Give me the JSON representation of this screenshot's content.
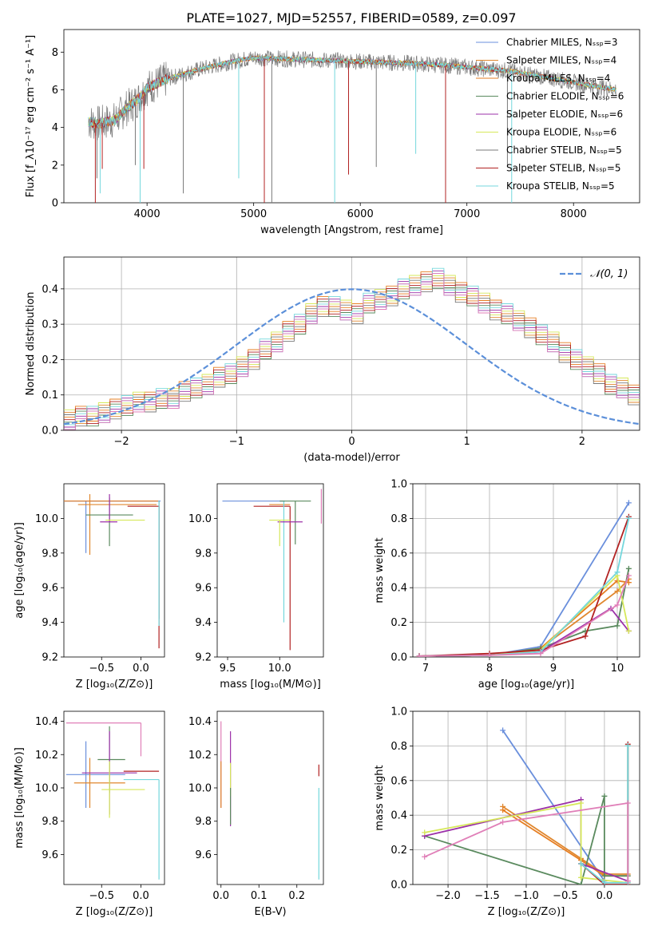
{
  "title": "PLATE=1027, MJD=52557, FIBERID=0589, z=0.097",
  "colors": {
    "Chabrier MILES": "#6a8fdc",
    "Salpeter MILES": "#e0872e",
    "Kroupa MILES": "#e67e22",
    "Chabrier ELODIE": "#5a8a5e",
    "Salpeter ELODIE": "#9b30a8",
    "Kroupa ELODIE": "#d6e85a",
    "Chabrier STELIB": "#7a7a7a",
    "Salpeter STELIB": "#b22222",
    "Kroupa STELIB": "#74d7dc",
    "extra": "#e07fb8"
  },
  "chart_data": [
    {
      "id": "spectrum",
      "type": "line",
      "xlabel": "wavelength [Angstrom, rest frame]",
      "ylabel": "Flux [f_λ10⁻¹⁷ erg cm⁻² s⁻¹ A⁻¹]",
      "xlim": [
        3220,
        8620
      ],
      "ylim": [
        0,
        9.2
      ],
      "xticks": [
        4000,
        5000,
        6000,
        7000,
        8000
      ],
      "yticks": [
        0,
        2,
        4,
        6,
        8
      ],
      "legend_position": "top-right",
      "legend": [
        "Chabrier MILES, N_SSP=3",
        "Salpeter MILES, N_SSP=4",
        "Kroupa MILES, N_SSP=4",
        "Chabrier ELODIE, N_SSP=6",
        "Salpeter ELODIE, N_SSP=6",
        "Kroupa ELODIE, N_SSP=6",
        "Chabrier STELIB, N_SSP=5",
        "Salpeter STELIB, N_SSP=5",
        "Kroupa STELIB, N_SSP=5"
      ],
      "continuum_x": [
        3450,
        3550,
        3700,
        3800,
        3900,
        4000,
        4200,
        4500,
        4800,
        5000,
        5500,
        6000,
        6500,
        6800,
        7000,
        7200,
        7400,
        7600,
        7800,
        8000,
        8200,
        8400
      ],
      "continuum_y": [
        4.3,
        4.2,
        4.4,
        5.0,
        5.4,
        6.1,
        6.6,
        7.1,
        7.5,
        7.7,
        7.6,
        7.5,
        7.4,
        7.3,
        7.2,
        7.1,
        7.0,
        6.8,
        6.6,
        6.4,
        6.2,
        6.0
      ],
      "absorption_lines_x": [
        3515,
        3530,
        3560,
        3580,
        3890,
        3935,
        3970,
        4340,
        4860,
        5100,
        5170,
        5760,
        5890,
        6150,
        6520,
        6800,
        7380,
        7420
      ],
      "absorption_lines_y": [
        0.0,
        1.3,
        0.5,
        1.8,
        2.0,
        0.0,
        1.8,
        0.5,
        1.3,
        0.0,
        0.0,
        0.0,
        1.5,
        1.9,
        2.6,
        0.0,
        2.0,
        0.0
      ]
    },
    {
      "id": "residuals",
      "type": "bar",
      "xlabel": "(data-model)/error",
      "ylabel": "Normed distribution",
      "xlim": [
        -2.5,
        2.5
      ],
      "ylim": [
        0,
        0.49
      ],
      "xticks": [
        -2,
        -1,
        0,
        1,
        2
      ],
      "yticks": [
        0.0,
        0.1,
        0.2,
        0.3,
        0.4
      ],
      "legend": [
        "𝒩(0, 1)"
      ],
      "bin_width": 0.1,
      "bins_start": -2.5,
      "histogram": [
        0.03,
        0.04,
        0.04,
        0.05,
        0.06,
        0.07,
        0.08,
        0.08,
        0.09,
        0.09,
        0.11,
        0.12,
        0.13,
        0.15,
        0.16,
        0.18,
        0.2,
        0.23,
        0.25,
        0.28,
        0.3,
        0.33,
        0.35,
        0.35,
        0.34,
        0.33,
        0.36,
        0.37,
        0.38,
        0.4,
        0.41,
        0.42,
        0.43,
        0.41,
        0.39,
        0.38,
        0.36,
        0.34,
        0.33,
        0.31,
        0.29,
        0.27,
        0.25,
        0.22,
        0.2,
        0.18,
        0.16,
        0.13,
        0.12,
        0.1
      ]
    },
    {
      "id": "Z-age",
      "type": "scatter",
      "xlabel": "Z [log₁₀(Z/Z⊙)]",
      "ylabel": "age  [log₁₀(age/yr)]",
      "xlim": [
        -0.98,
        0.3
      ],
      "ylim": [
        9.2,
        10.2
      ],
      "xticks": [
        -0.5,
        0.0
      ],
      "yticks": [
        9.2,
        9.4,
        9.6,
        9.8,
        10.0
      ],
      "points": [
        {
          "x": -0.7,
          "y": 10.1,
          "xerr": [
            0.28,
            0.95
          ],
          "yerr": [
            0.3,
            0.0
          ],
          "c": "Chabrier MILES"
        },
        {
          "x": -0.65,
          "y": 10.08,
          "xerr": [
            0.15,
            0.85
          ],
          "yerr": [
            0.29,
            0.06
          ],
          "c": "Salpeter MILES"
        },
        {
          "x": -0.4,
          "y": 10.1,
          "xerr": [
            0.65,
            0.62
          ],
          "yerr": [
            0.0,
            0.0
          ],
          "c": "Kroupa MILES"
        },
        {
          "x": -0.4,
          "y": 10.02,
          "xerr": [
            0.3,
            0.3
          ],
          "yerr": [
            0.18,
            0.1
          ],
          "c": "Chabrier ELODIE"
        },
        {
          "x": -0.4,
          "y": 9.98,
          "xerr": [
            0.12,
            0.1
          ],
          "yerr": [
            0.0,
            0.16
          ],
          "c": "Salpeter ELODIE"
        },
        {
          "x": -0.2,
          "y": 9.99,
          "xerr": [
            0.25,
            0.25
          ],
          "yerr": [
            0.0,
            0.0
          ],
          "c": "Kroupa ELODIE"
        },
        {
          "x": 0.23,
          "y": 10.1,
          "xerr": [
            0.0,
            0.0
          ],
          "yerr": [
            0.68,
            0.0
          ],
          "c": "Chabrier STELIB"
        },
        {
          "x": 0.23,
          "y": 10.07,
          "xerr": [
            0.4,
            0.0
          ],
          "yerr": [
            0.82,
            0.0
          ],
          "c": "Salpeter STELIB"
        },
        {
          "x": 0.23,
          "y": 10.1,
          "xerr": [
            0.0,
            0.0
          ],
          "yerr": [
            0.72,
            0.0
          ],
          "c": "Kroupa STELIB"
        }
      ]
    },
    {
      "id": "mass-age",
      "type": "scatter",
      "xlabel": "mass [log₁₀(M/M⊙)]",
      "ylabel": "",
      "xlim": [
        9.4,
        10.42
      ],
      "ylim": [
        9.2,
        10.2
      ],
      "xticks": [
        9.5,
        10.0
      ],
      "yticks": [
        9.2,
        9.4,
        9.6,
        9.8,
        10.0
      ],
      "points": [
        {
          "x": 10.05,
          "y": 10.1,
          "xerr": [
            0.6,
            0.0
          ],
          "yerr": [
            0.0,
            0.0
          ],
          "c": "Chabrier MILES"
        },
        {
          "x": 10.1,
          "y": 10.08,
          "xerr": [
            0.2,
            0.0
          ],
          "yerr": [
            0.0,
            0.0
          ],
          "c": "Salpeter MILES"
        },
        {
          "x": 10.1,
          "y": 10.07,
          "xerr": [
            0.35,
            0.0
          ],
          "yerr": [
            0.83,
            0.0
          ],
          "c": "Salpeter STELIB"
        },
        {
          "x": 10.04,
          "y": 10.1,
          "xerr": [
            0.0,
            0.0
          ],
          "yerr": [
            0.7,
            0.0
          ],
          "c": "Kroupa STELIB"
        },
        {
          "x": 10.15,
          "y": 10.1,
          "xerr": [
            0.15,
            0.15
          ],
          "yerr": [
            0.25,
            0.0
          ],
          "c": "Chabrier ELODIE"
        },
        {
          "x": 10.1,
          "y": 9.98,
          "xerr": [
            0.12,
            0.12
          ],
          "yerr": [
            0.0,
            0.0
          ],
          "c": "Salpeter ELODIE"
        },
        {
          "x": 10.0,
          "y": 9.99,
          "xerr": [
            0.1,
            0.1
          ],
          "yerr": [
            0.15,
            0.0
          ],
          "c": "Kroupa ELODIE"
        },
        {
          "x": 10.4,
          "y": 10.07,
          "xerr": [
            0.0,
            0.0
          ],
          "yerr": [
            0.1,
            0.1
          ],
          "c": "extra"
        }
      ]
    },
    {
      "id": "age-weight",
      "type": "line",
      "xlabel": "age  [log₁₀(age/yr)]",
      "ylabel": "mass weight",
      "xlim": [
        6.8,
        10.35
      ],
      "ylim": [
        0,
        1.0
      ],
      "xticks": [
        7,
        8,
        9,
        10
      ],
      "yticks": [
        0.0,
        0.2,
        0.4,
        0.6,
        0.8,
        1.0
      ],
      "series": [
        {
          "c": "Chabrier MILES",
          "x": [
            6.9,
            8.0,
            8.8,
            10.18
          ],
          "y": [
            0.005,
            0.01,
            0.06,
            0.89
          ]
        },
        {
          "c": "Salpeter MILES",
          "x": [
            6.9,
            8.0,
            8.8,
            10.0,
            10.18
          ],
          "y": [
            0.005,
            0.01,
            0.05,
            0.38,
            0.45
          ]
        },
        {
          "c": "Kroupa MILES",
          "x": [
            6.9,
            8.0,
            8.8,
            10.0,
            10.18
          ],
          "y": [
            0.005,
            0.01,
            0.05,
            0.44,
            0.43
          ]
        },
        {
          "c": "Chabrier ELODIE",
          "x": [
            6.9,
            8.0,
            8.8,
            9.5,
            10.0,
            10.18
          ],
          "y": [
            0.005,
            0.01,
            0.05,
            0.15,
            0.18,
            0.51
          ]
        },
        {
          "c": "Salpeter ELODIE",
          "x": [
            6.9,
            8.0,
            8.8,
            9.9,
            10.18
          ],
          "y": [
            0.005,
            0.01,
            0.03,
            0.28,
            0.15
          ]
        },
        {
          "c": "Kroupa ELODIE",
          "x": [
            6.9,
            8.0,
            8.8,
            10.0,
            10.18
          ],
          "y": [
            0.005,
            0.01,
            0.04,
            0.47,
            0.15
          ]
        },
        {
          "c": "Salpeter STELIB",
          "x": [
            6.9,
            8.0,
            8.8,
            9.5,
            10.18
          ],
          "y": [
            0.005,
            0.02,
            0.04,
            0.12,
            0.81
          ]
        },
        {
          "c": "Kroupa STELIB",
          "x": [
            6.9,
            8.0,
            8.8,
            10.0,
            10.18
          ],
          "y": [
            0.005,
            0.01,
            0.03,
            0.49,
            0.8
          ]
        },
        {
          "c": "extra",
          "x": [
            6.9,
            8.0,
            8.8,
            10.0,
            10.18
          ],
          "y": [
            0.005,
            0.01,
            0.02,
            0.3,
            0.47
          ]
        }
      ]
    },
    {
      "id": "Z-mass",
      "type": "scatter",
      "xlabel": "Z [log₁₀(Z/Z⊙)]",
      "ylabel": "mass [log₁₀(M/M⊙)]",
      "xlim": [
        -0.98,
        0.3
      ],
      "ylim": [
        9.42,
        10.46
      ],
      "xticks": [
        -0.5,
        0.0
      ],
      "yticks": [
        9.6,
        9.8,
        10.0,
        10.2,
        10.4
      ],
      "points": [
        {
          "x": -0.7,
          "y": 10.08,
          "xerr": [
            0.25,
            0.5
          ],
          "yerr": [
            0.2,
            0.2
          ],
          "c": "Chabrier MILES"
        },
        {
          "x": -0.65,
          "y": 10.03,
          "xerr": [
            0.2,
            0.45
          ],
          "yerr": [
            0.15,
            0.15
          ],
          "c": "Salpeter MILES"
        },
        {
          "x": -0.4,
          "y": 10.17,
          "xerr": [
            0.15,
            0.2
          ],
          "yerr": [
            0.2,
            0.2
          ],
          "c": "Chabrier ELODIE"
        },
        {
          "x": -0.4,
          "y": 10.09,
          "xerr": [
            0.35,
            0.35
          ],
          "yerr": [
            0.25,
            0.25
          ],
          "c": "Salpeter ELODIE"
        },
        {
          "x": -0.4,
          "y": 9.99,
          "xerr": [
            0.1,
            0.45
          ],
          "yerr": [
            0.17,
            0.17
          ],
          "c": "Kroupa ELODIE"
        },
        {
          "x": 0.0,
          "y": 10.39,
          "xerr": [
            0.95,
            0.0
          ],
          "yerr": [
            0.2,
            0.0
          ],
          "c": "extra"
        },
        {
          "x": 0.23,
          "y": 10.1,
          "xerr": [
            0.45,
            0.0
          ],
          "yerr": [
            0.0,
            0.0
          ],
          "c": "Salpeter STELIB"
        },
        {
          "x": 0.23,
          "y": 10.05,
          "xerr": [
            0.45,
            0.0
          ],
          "yerr": [
            0.6,
            0.0
          ],
          "c": "Kroupa STELIB"
        }
      ]
    },
    {
      "id": "EBV-mass",
      "type": "scatter",
      "xlabel": "E(B-V)",
      "ylabel": "",
      "xlim": [
        -0.01,
        0.27
      ],
      "ylim": [
        9.42,
        10.46
      ],
      "xticks": [
        0.0,
        0.1,
        0.2
      ],
      "yticks": [
        9.6,
        9.8,
        10.0,
        10.2,
        10.4
      ],
      "points": [
        {
          "x": 0.0,
          "y": 10.1,
          "yerr": [
            0.22,
            0.3
          ],
          "c": "extra"
        },
        {
          "x": 0.0,
          "y": 10.02,
          "yerr": [
            0.14,
            0.14
          ],
          "c": "Salpeter MILES"
        },
        {
          "x": 0.025,
          "y": 10.07,
          "yerr": [
            0.3,
            0.27
          ],
          "c": "Salpeter ELODIE"
        },
        {
          "x": 0.025,
          "y": 10.15,
          "yerr": [
            0.2,
            0.0
          ],
          "c": "Kroupa ELODIE"
        },
        {
          "x": 0.025,
          "y": 10.0,
          "yerr": [
            0.22,
            0.0
          ],
          "c": "Chabrier ELODIE"
        },
        {
          "x": 0.258,
          "y": 10.07,
          "yerr": [
            0.0,
            0.07
          ],
          "c": "Salpeter STELIB"
        },
        {
          "x": 0.258,
          "y": 10.0,
          "yerr": [
            0.55,
            0.0
          ],
          "c": "Kroupa STELIB"
        }
      ]
    },
    {
      "id": "Z-weight",
      "type": "line",
      "xlabel": "Z [log₁₀(Z/Z⊙)]",
      "ylabel": "mass weight",
      "xlim": [
        -2.45,
        0.45
      ],
      "ylim": [
        0,
        1.0
      ],
      "xticks": [
        -2.0,
        -1.5,
        -1.0,
        -0.5,
        0.0
      ],
      "yticks": [
        0.0,
        0.2,
        0.4,
        0.6,
        0.8,
        1.0
      ],
      "series": [
        {
          "c": "Chabrier MILES",
          "x": [
            -1.3,
            0.0,
            0.0
          ],
          "y": [
            0.89,
            0.02,
            0.0
          ]
        },
        {
          "c": "Salpeter MILES",
          "x": [
            -1.3,
            -0.3,
            0.0,
            0.3
          ],
          "y": [
            0.45,
            0.15,
            0.06,
            0.06
          ]
        },
        {
          "c": "Kroupa MILES",
          "x": [
            -1.3,
            -0.3,
            0.0,
            0.3
          ],
          "y": [
            0.43,
            0.14,
            0.05,
            0.05
          ]
        },
        {
          "c": "Chabrier ELODIE",
          "x": [
            -2.3,
            -0.3,
            0.0,
            0.0,
            0.3,
            0.3
          ],
          "y": [
            0.28,
            0.0,
            0.51,
            0.05,
            0.05,
            0.8
          ]
        },
        {
          "c": "Salpeter ELODIE",
          "x": [
            -2.3,
            -0.3,
            -0.3,
            0.3
          ],
          "y": [
            0.28,
            0.49,
            0.12,
            0.02
          ]
        },
        {
          "c": "Kroupa ELODIE",
          "x": [
            -2.3,
            -0.3,
            -0.3,
            0.3
          ],
          "y": [
            0.3,
            0.47,
            0.04,
            0.01
          ]
        },
        {
          "c": "Salpeter STELIB",
          "x": [
            -0.3,
            0.0,
            0.3,
            0.3
          ],
          "y": [
            0.12,
            0.0,
            0.0,
            0.81
          ]
        },
        {
          "c": "Kroupa STELIB",
          "x": [
            -0.3,
            0.0,
            0.3,
            0.3
          ],
          "y": [
            0.12,
            0.01,
            0.01,
            0.8
          ]
        },
        {
          "c": "extra",
          "x": [
            -2.3,
            -1.3,
            0.3,
            0.3
          ],
          "y": [
            0.16,
            0.36,
            0.47,
            0.02
          ]
        }
      ]
    }
  ]
}
